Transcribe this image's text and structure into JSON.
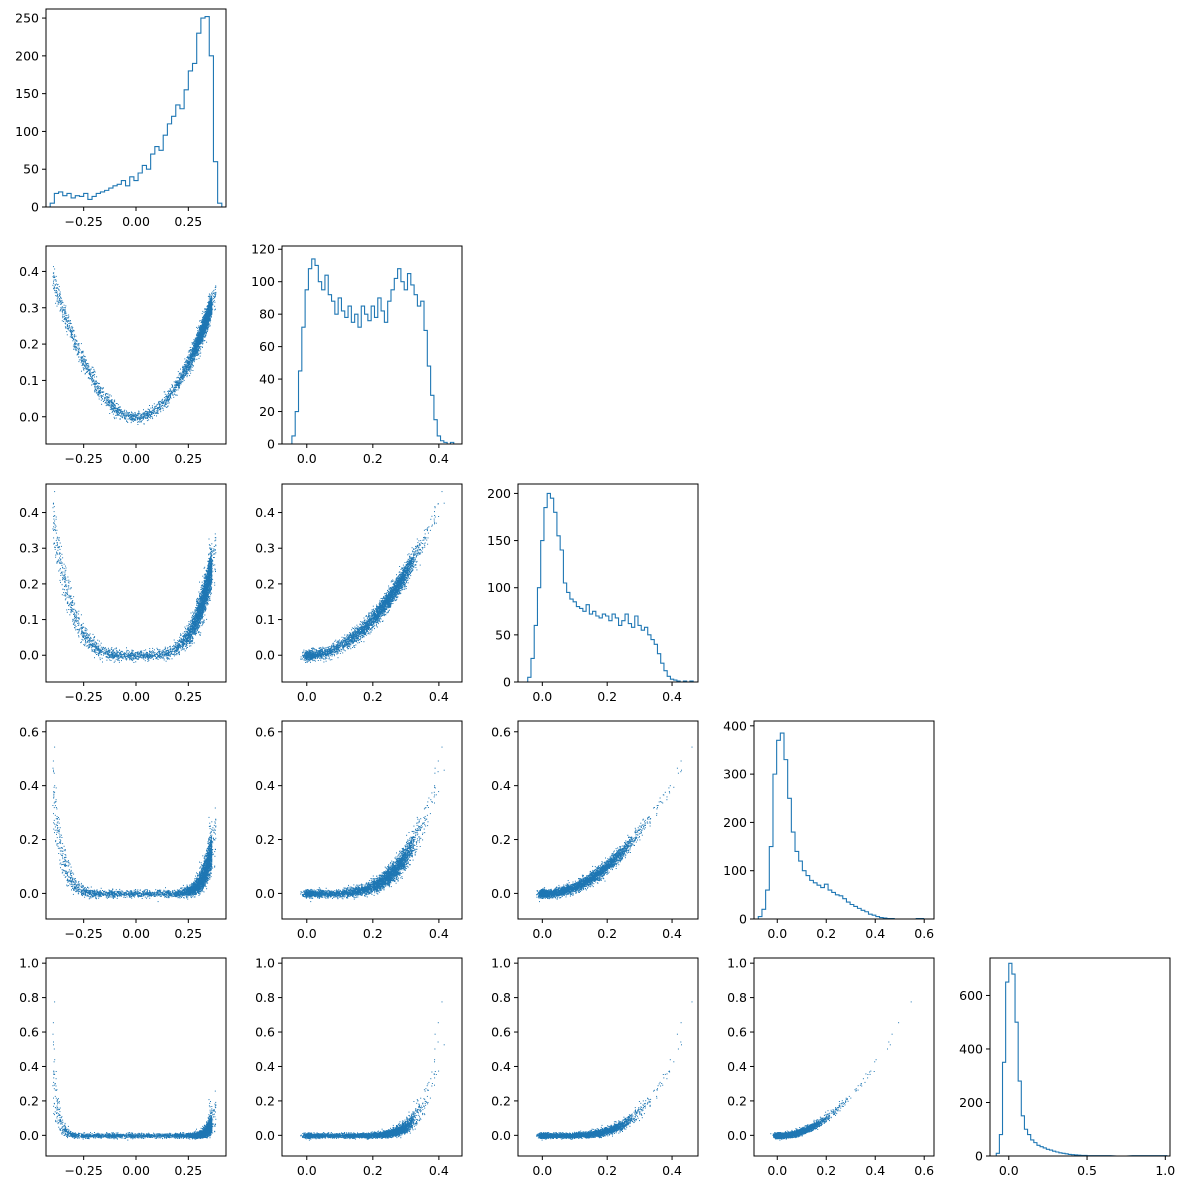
{
  "chart_data": {
    "type": "corner",
    "description_free": true,
    "series_color": "#1f77b4",
    "n_dims": 5,
    "grid": false,
    "dims": [
      {
        "range": [
          -0.43,
          0.43
        ],
        "ticks": [
          -0.25,
          0.0,
          0.25
        ],
        "tick_labels": [
          "−0.25",
          "0.00",
          "0.25"
        ]
      },
      {
        "range": [
          -0.075,
          0.47
        ],
        "ticks": [
          0.0,
          0.2,
          0.4
        ],
        "tick_labels": [
          "0.0",
          "0.2",
          "0.4"
        ]
      },
      {
        "range": [
          -0.075,
          0.48
        ],
        "ticks": [
          0.0,
          0.2,
          0.4
        ],
        "tick_labels": [
          "0.0",
          "0.2",
          "0.4"
        ]
      },
      {
        "range": [
          -0.095,
          0.64
        ],
        "ticks": [
          0.0,
          0.2,
          0.4,
          0.6
        ],
        "tick_labels": [
          "0.0",
          "0.2",
          "0.4",
          "0.6"
        ]
      },
      {
        "range": [
          -0.12,
          1.03
        ],
        "ticks": [
          0.0,
          0.5,
          1.0
        ],
        "tick_labels": [
          "0.0",
          "0.5",
          "1.0"
        ]
      }
    ],
    "scatter_y_ticks": [
      null,
      {
        "ticks": [
          0.0,
          0.1,
          0.2,
          0.3,
          0.4
        ],
        "tick_labels": [
          "0.0",
          "0.1",
          "0.2",
          "0.3",
          "0.4"
        ]
      },
      {
        "ticks": [
          0.0,
          0.1,
          0.2,
          0.3,
          0.4
        ],
        "tick_labels": [
          "0.0",
          "0.1",
          "0.2",
          "0.3",
          "0.4"
        ]
      },
      {
        "ticks": [
          0.0,
          0.2,
          0.4,
          0.6
        ],
        "tick_labels": [
          "0.0",
          "0.2",
          "0.4",
          "0.6"
        ]
      },
      {
        "ticks": [
          0.0,
          0.2,
          0.4,
          0.6,
          0.8,
          1.0
        ],
        "tick_labels": [
          "0.0",
          "0.2",
          "0.4",
          "0.6",
          "0.8",
          "1.0"
        ]
      }
    ],
    "histograms": [
      {
        "dim": 0,
        "ylim": [
          0,
          262
        ],
        "y_ticks": [
          0,
          50,
          100,
          150,
          200,
          250
        ],
        "y_tick_labels": [
          "0",
          "50",
          "100",
          "150",
          "200",
          "250"
        ],
        "x": [
          -0.4,
          -0.38,
          -0.36,
          -0.34,
          -0.32,
          -0.3,
          -0.28,
          -0.26,
          -0.24,
          -0.22,
          -0.2,
          -0.18,
          -0.16,
          -0.14,
          -0.12,
          -0.1,
          -0.08,
          -0.06,
          -0.04,
          -0.02,
          0.0,
          0.02,
          0.04,
          0.06,
          0.08,
          0.1,
          0.12,
          0.14,
          0.16,
          0.18,
          0.2,
          0.22,
          0.24,
          0.26,
          0.28,
          0.3,
          0.32,
          0.34,
          0.36,
          0.38,
          0.4
        ],
        "counts": [
          5,
          18,
          20,
          15,
          18,
          12,
          15,
          14,
          18,
          10,
          14,
          18,
          20,
          22,
          25,
          28,
          30,
          35,
          28,
          40,
          35,
          45,
          55,
          50,
          70,
          80,
          75,
          95,
          110,
          120,
          135,
          130,
          155,
          180,
          190,
          230,
          250,
          252,
          200,
          60,
          5
        ]
      },
      {
        "dim": 1,
        "ylim": [
          0,
          122
        ],
        "y_ticks": [
          0,
          20,
          40,
          60,
          80,
          100,
          120
        ],
        "y_tick_labels": [
          "0",
          "20",
          "40",
          "60",
          "80",
          "100",
          "120"
        ],
        "x": [
          -0.04,
          -0.03,
          -0.02,
          -0.01,
          0.0,
          0.01,
          0.02,
          0.03,
          0.04,
          0.05,
          0.06,
          0.07,
          0.08,
          0.09,
          0.1,
          0.11,
          0.12,
          0.13,
          0.14,
          0.15,
          0.16,
          0.17,
          0.18,
          0.19,
          0.2,
          0.21,
          0.22,
          0.23,
          0.24,
          0.25,
          0.26,
          0.27,
          0.28,
          0.29,
          0.3,
          0.31,
          0.32,
          0.33,
          0.34,
          0.35,
          0.36,
          0.37,
          0.38,
          0.39,
          0.4,
          0.41,
          0.42,
          0.43,
          0.44
        ],
        "counts": [
          5,
          20,
          45,
          72,
          95,
          108,
          114,
          110,
          100,
          95,
          104,
          92,
          88,
          80,
          90,
          82,
          78,
          85,
          75,
          80,
          72,
          85,
          80,
          76,
          85,
          78,
          90,
          82,
          75,
          88,
          95,
          102,
          108,
          100,
          95,
          105,
          98,
          92,
          85,
          88,
          70,
          48,
          30,
          15,
          5,
          2,
          1,
          0,
          1
        ]
      },
      {
        "dim": 2,
        "ylim": [
          0,
          210
        ],
        "y_ticks": [
          0,
          50,
          100,
          150,
          200
        ],
        "y_tick_labels": [
          "0",
          "50",
          "100",
          "150",
          "200"
        ],
        "x": [
          -0.04,
          -0.03,
          -0.02,
          -0.01,
          0.0,
          0.01,
          0.02,
          0.03,
          0.04,
          0.05,
          0.06,
          0.07,
          0.08,
          0.09,
          0.1,
          0.11,
          0.12,
          0.13,
          0.14,
          0.15,
          0.16,
          0.17,
          0.18,
          0.19,
          0.2,
          0.21,
          0.22,
          0.23,
          0.24,
          0.25,
          0.26,
          0.27,
          0.28,
          0.29,
          0.3,
          0.31,
          0.32,
          0.33,
          0.34,
          0.35,
          0.36,
          0.37,
          0.38,
          0.39,
          0.4,
          0.41,
          0.42,
          0.43,
          0.44,
          0.45,
          0.46
        ],
        "counts": [
          5,
          25,
          60,
          100,
          150,
          185,
          200,
          195,
          180,
          155,
          140,
          105,
          95,
          88,
          85,
          80,
          78,
          75,
          82,
          72,
          75,
          70,
          68,
          72,
          70,
          65,
          72,
          68,
          60,
          65,
          72,
          62,
          58,
          70,
          60,
          55,
          58,
          50,
          45,
          40,
          30,
          20,
          12,
          6,
          3,
          2,
          1,
          0,
          1,
          0,
          1
        ]
      },
      {
        "dim": 3,
        "ylim": [
          0,
          410
        ],
        "y_ticks": [
          0,
          100,
          200,
          300,
          400
        ],
        "y_tick_labels": [
          "0",
          "100",
          "200",
          "300",
          "400"
        ],
        "x": [
          -0.07,
          -0.055,
          -0.04,
          -0.025,
          -0.01,
          0.005,
          0.02,
          0.035,
          0.05,
          0.065,
          0.08,
          0.095,
          0.11,
          0.125,
          0.14,
          0.155,
          0.17,
          0.185,
          0.2,
          0.215,
          0.23,
          0.245,
          0.26,
          0.275,
          0.29,
          0.305,
          0.32,
          0.335,
          0.35,
          0.365,
          0.38,
          0.395,
          0.41,
          0.425,
          0.44,
          0.455,
          0.47,
          0.485,
          0.5,
          0.515,
          0.53,
          0.545,
          0.56,
          0.575,
          0.59
        ],
        "counts": [
          5,
          20,
          60,
          150,
          300,
          370,
          385,
          330,
          250,
          180,
          140,
          120,
          100,
          90,
          80,
          75,
          70,
          65,
          72,
          60,
          55,
          50,
          48,
          42,
          35,
          30,
          26,
          22,
          18,
          15,
          10,
          8,
          5,
          3,
          2,
          1,
          1,
          0,
          0,
          0,
          0,
          0,
          0,
          1,
          1
        ]
      },
      {
        "dim": 4,
        "ylim": [
          0,
          740
        ],
        "y_ticks": [
          0,
          200,
          400,
          600
        ],
        "y_tick_labels": [
          "0",
          "200",
          "400",
          "600"
        ],
        "x": [
          -0.07,
          -0.05,
          -0.03,
          -0.01,
          0.01,
          0.03,
          0.05,
          0.07,
          0.09,
          0.11,
          0.13,
          0.15,
          0.17,
          0.19,
          0.21,
          0.23,
          0.25,
          0.27,
          0.29,
          0.31,
          0.33,
          0.35,
          0.37,
          0.39,
          0.41,
          0.43,
          0.45,
          0.47,
          0.49,
          0.51,
          0.55,
          0.6,
          0.7,
          0.8,
          0.9,
          1.0
        ],
        "counts": [
          10,
          80,
          350,
          650,
          720,
          680,
          500,
          280,
          150,
          100,
          80,
          60,
          50,
          40,
          35,
          30,
          25,
          22,
          18,
          15,
          12,
          10,
          8,
          6,
          5,
          4,
          3,
          2,
          2,
          1,
          1,
          1,
          0,
          1,
          1,
          1
        ]
      }
    ]
  }
}
